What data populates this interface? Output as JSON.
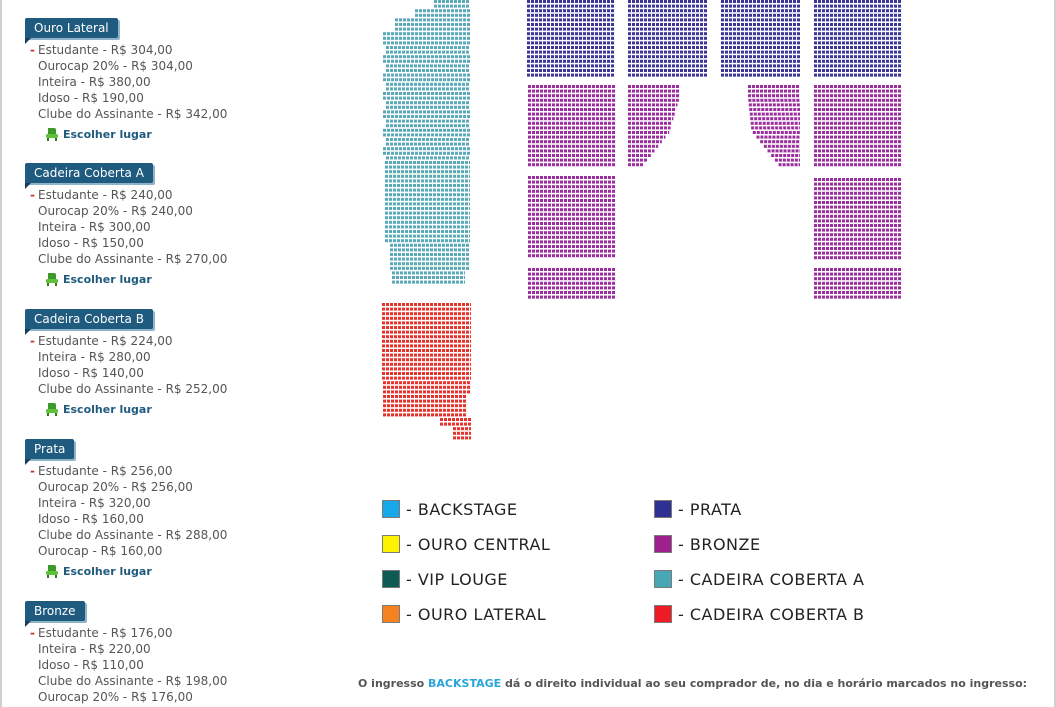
{
  "sidebar": {
    "sections": [
      {
        "title": "Ouro Lateral",
        "prices": [
          "Estudante - R$ 304,00",
          "Ourocap 20% - R$ 304,00",
          "Inteira - R$ 380,00",
          "Idoso - R$ 190,00",
          "Clube do Assinante - R$ 342,00"
        ],
        "action": "Escolher lugar"
      },
      {
        "title": "Cadeira Coberta A",
        "prices": [
          "Estudante - R$ 240,00",
          "Ourocap 20% - R$ 240,00",
          "Inteira - R$ 300,00",
          "Idoso - R$ 150,00",
          "Clube do Assinante - R$ 270,00"
        ],
        "action": "Escolher lugar"
      },
      {
        "title": "Cadeira Coberta B",
        "prices": [
          "Estudante - R$ 224,00",
          "Inteira - R$ 280,00",
          "Idoso - R$ 140,00",
          "Clube do Assinante - R$ 252,00"
        ],
        "action": "Escolher lugar"
      },
      {
        "title": "Prata",
        "prices": [
          "Estudante - R$ 256,00",
          "Ourocap 20% - R$ 256,00",
          "Inteira - R$ 320,00",
          "Idoso - R$ 160,00",
          "Clube do Assinante - R$ 288,00",
          "Ourocap - R$ 160,00"
        ],
        "action": "Escolher lugar"
      },
      {
        "title": "Bronze",
        "prices": [
          "Estudante - R$ 176,00",
          "Inteira - R$ 220,00",
          "Idoso - R$ 110,00",
          "Clube do Assinante - R$ 198,00",
          "Ourocap 20% - R$ 176,00"
        ],
        "action": ""
      }
    ]
  },
  "legend": [
    {
      "label": "- BACKSTAGE",
      "color": "#16a8e8"
    },
    {
      "label": "- PRATA",
      "color": "#2e3192"
    },
    {
      "label": "- OURO CENTRAL",
      "color": "#fff200"
    },
    {
      "label": "- BRONZE",
      "color": "#9e1f8e"
    },
    {
      "label": "- VIP LOUGE",
      "color": "#0e5b55"
    },
    {
      "label": "- CADEIRA COBERTA A",
      "color": "#49a6b4"
    },
    {
      "label": "- OURO LATERAL",
      "color": "#f58220"
    },
    {
      "label": "- CADEIRA COBERTA B",
      "color": "#ed1c24"
    }
  ],
  "seatmap": {
    "colors": {
      "prata": "#3b3595",
      "bronze": "#9b2e9d",
      "cadeira_coberta_a": "#5aa9b9",
      "cadeira_coberta_b": "#e4332c"
    }
  },
  "footer": {
    "prefix": "O ingresso ",
    "highlight": "BACKSTAGE",
    "suffix": " dá o direito individual ao seu comprador de, no dia e horário marcados no ingresso:"
  }
}
